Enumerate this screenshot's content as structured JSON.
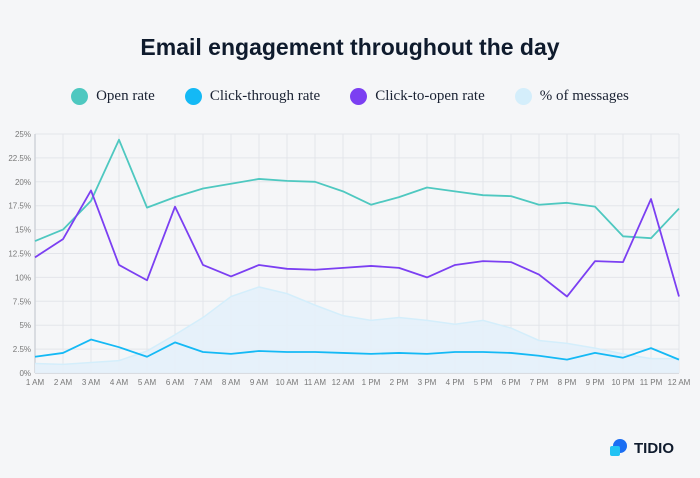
{
  "chart_data": {
    "type": "line",
    "title": "Email engagement throughout the day",
    "categories": [
      "1 AM",
      "2 AM",
      "3 AM",
      "4 AM",
      "5 AM",
      "6 AM",
      "7 AM",
      "8 AM",
      "9 AM",
      "10 AM",
      "11 AM",
      "12 AM",
      "1 PM",
      "2 PM",
      "3 PM",
      "4 PM",
      "5 PM",
      "6 PM",
      "7 PM",
      "8 PM",
      "9 PM",
      "10 PM",
      "11 PM",
      "12 AM"
    ],
    "yticks": [
      "0%",
      "2.5%",
      "5%",
      "7.5%",
      "10%",
      "12.5%",
      "15%",
      "17.5%",
      "20%",
      "22.5%",
      "25%"
    ],
    "ylim": [
      0,
      25
    ],
    "grid": true,
    "legend_position": "top",
    "series": [
      {
        "name": "Open rate",
        "color": "#4ec8c0",
        "type": "line",
        "values": [
          13.8,
          15,
          18,
          24.4,
          17.3,
          18.4,
          19.3,
          19.8,
          20.3,
          20.1,
          20,
          19,
          17.6,
          18.4,
          19.4,
          19,
          18.6,
          18.5,
          17.6,
          17.8,
          17.4,
          14.3,
          14.1,
          17.2
        ]
      },
      {
        "name": "Click-through rate",
        "color": "#14b9f5",
        "type": "line",
        "values": [
          1.7,
          2.1,
          3.5,
          2.7,
          1.7,
          3.2,
          2.2,
          2,
          2.3,
          2.2,
          2.2,
          2.1,
          2,
          2.1,
          2,
          2.2,
          2.2,
          2.1,
          1.8,
          1.4,
          2.1,
          1.6,
          2.6,
          1.4
        ]
      },
      {
        "name": "Click-to-open rate",
        "color": "#7b3ff2",
        "type": "line",
        "values": [
          12.1,
          14,
          19.1,
          11.3,
          9.7,
          17.4,
          11.3,
          10.1,
          11.3,
          10.9,
          10.8,
          11,
          11.2,
          11,
          10,
          11.3,
          11.7,
          11.6,
          10.3,
          8,
          11.7,
          11.6,
          18.2,
          8
        ]
      },
      {
        "name": "% of messages",
        "color": "#d4eefb",
        "type": "area",
        "values": [
          1,
          0.9,
          1.1,
          1.3,
          2.3,
          4,
          5.8,
          8,
          9,
          8.3,
          7.1,
          6,
          5.5,
          5.8,
          5.5,
          5.1,
          5.5,
          4.7,
          3.4,
          3.1,
          2.6,
          2,
          1.5,
          1.5
        ]
      }
    ]
  },
  "brand": {
    "name": "TIDIO"
  }
}
